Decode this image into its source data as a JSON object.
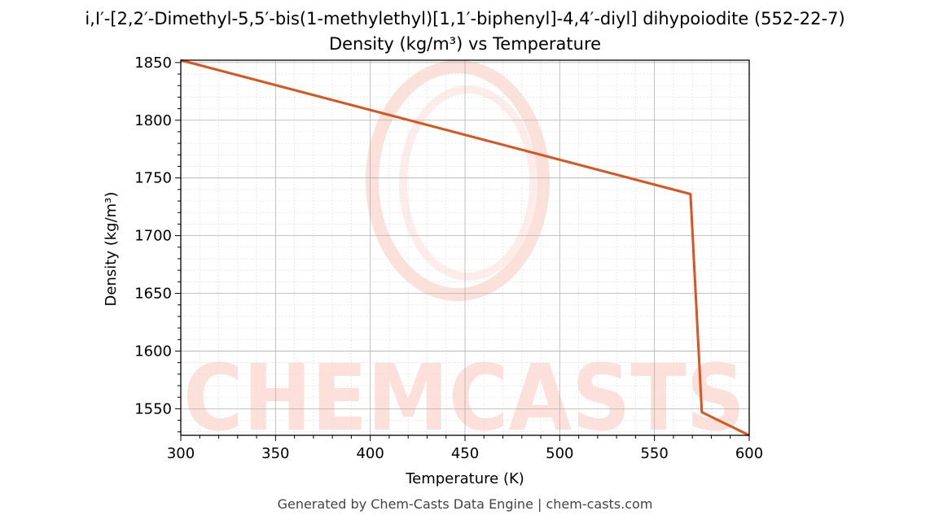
{
  "chart_data": {
    "type": "line",
    "title": "i,I′-[2,2′-Dimethyl-5,5′-bis(1-methylethyl)[1,1′-biphenyl]-4,4′-diyl] dihypoiodite (552-22-7)",
    "subtitle": "Density (kg/m³) vs Temperature",
    "xlabel": "Temperature (K)",
    "ylabel": "Density (kg/m³)",
    "xlim": [
      300,
      600
    ],
    "ylim": [
      1527,
      1852
    ],
    "x_ticks": [
      300,
      350,
      400,
      450,
      500,
      550,
      600
    ],
    "y_ticks": [
      1550,
      1600,
      1650,
      1700,
      1750,
      1800,
      1850
    ],
    "grid": true,
    "series": [
      {
        "color": "#d9541e",
        "x": [
          300,
          569,
          575,
          600
        ],
        "y": [
          1852,
          1736,
          1547,
          1527
        ]
      }
    ]
  },
  "watermark": {
    "text": "CHEMCASTS",
    "color": "#fde0da"
  },
  "footer": "Generated by Chem-Casts Data Engine | chem-casts.com"
}
